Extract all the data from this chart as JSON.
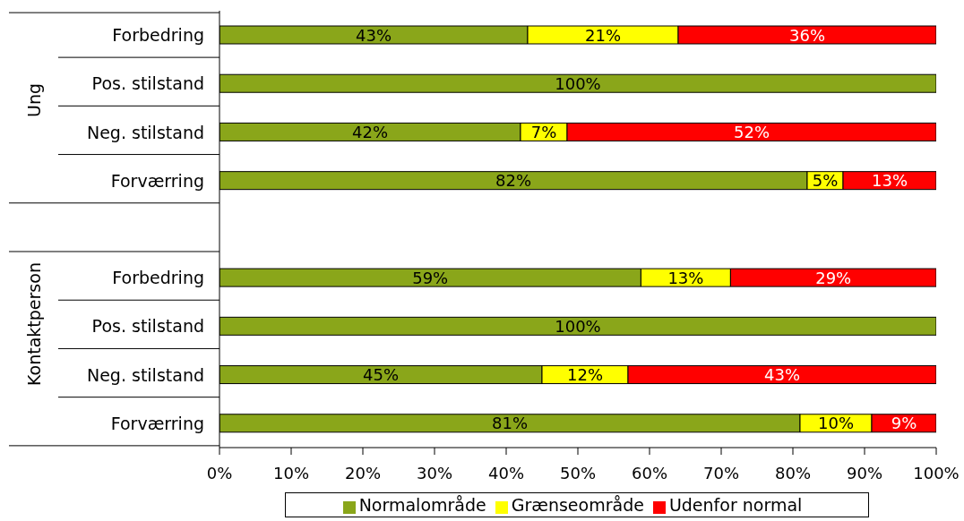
{
  "chart_data": {
    "type": "bar",
    "orientation": "horizontal",
    "stacked": true,
    "categories": [
      "Forbedring",
      "Pos. stilstand",
      "Neg. stilstand",
      "Forværring",
      null,
      "Forbedring",
      "Pos. stilstand",
      "Neg. stilstand",
      "Forværring"
    ],
    "annotations": [
      "Ung",
      "Kontaktperson"
    ],
    "series": [
      {
        "name": "Normalområde",
        "color": "#8aa61a",
        "values": [
          43,
          100,
          42,
          82,
          null,
          58.8,
          100,
          45,
          81
        ],
        "value_labels": [
          "43%",
          "100%",
          "42%",
          "82%",
          null,
          "59%",
          "100%",
          "45%",
          "81%"
        ]
      },
      {
        "name": "Grænseområde",
        "color": "#ffff00",
        "values": [
          21,
          null,
          6.5,
          5,
          null,
          12.5,
          null,
          12,
          10
        ],
        "value_labels": [
          "21%",
          null,
          "7%",
          "5%",
          null,
          "13%",
          null,
          "12%",
          "10%"
        ]
      },
      {
        "name": "Udenfor normal",
        "color": "#ff0000",
        "values": [
          36,
          null,
          51.5,
          13,
          null,
          28.7,
          null,
          43,
          9
        ],
        "value_labels": [
          "36%",
          null,
          "52%",
          "13%",
          null,
          "29%",
          null,
          "43%",
          "9%"
        ]
      }
    ],
    "xlim": [
      0,
      100
    ],
    "xticks": [
      {
        "value": 0,
        "label": "0%"
      },
      {
        "value": 10,
        "label": "10%"
      },
      {
        "value": 20,
        "label": "20%"
      },
      {
        "value": 30,
        "label": "30%"
      },
      {
        "value": 40,
        "label": "40%"
      },
      {
        "value": 50,
        "label": "50%"
      },
      {
        "value": 60,
        "label": "60%"
      },
      {
        "value": 70,
        "label": "70%"
      },
      {
        "value": 80,
        "label": "80%"
      },
      {
        "value": 90,
        "label": "90%"
      },
      {
        "value": 100,
        "label": "100%"
      }
    ],
    "legend": "bottom"
  }
}
